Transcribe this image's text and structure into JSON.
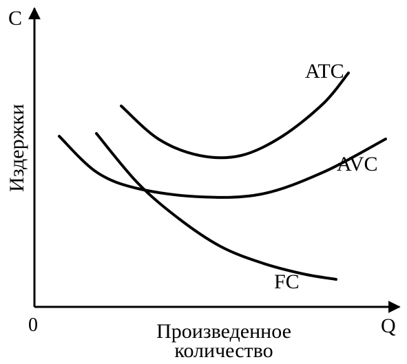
{
  "chart_data": {
    "type": "line",
    "title": "",
    "xlabel": "Произведенное количество",
    "xlabel_lines": [
      "Произведенное",
      "количество"
    ],
    "ylabel": "Издержки",
    "x_axis_letter": "Q",
    "y_axis_letter": "C",
    "origin_label": "0",
    "grid": false,
    "series": [
      {
        "name": "ATC",
        "points": [
          [
            2.1,
            7.3
          ],
          [
            3.0,
            6.1
          ],
          [
            4.0,
            5.5
          ],
          [
            5.0,
            5.5
          ],
          [
            6.0,
            6.2
          ],
          [
            7.0,
            7.4
          ],
          [
            7.6,
            8.5
          ]
        ]
      },
      {
        "name": "AVC",
        "points": [
          [
            0.6,
            6.2
          ],
          [
            1.5,
            4.9
          ],
          [
            2.5,
            4.3
          ],
          [
            4.0,
            4.0
          ],
          [
            5.5,
            4.1
          ],
          [
            7.0,
            4.9
          ],
          [
            8.5,
            6.1
          ]
        ]
      },
      {
        "name": "FC",
        "points": [
          [
            1.5,
            6.3
          ],
          [
            2.5,
            4.5
          ],
          [
            3.5,
            3.2
          ],
          [
            4.5,
            2.2
          ],
          [
            5.5,
            1.6
          ],
          [
            6.5,
            1.2
          ],
          [
            7.3,
            1.0
          ]
        ]
      }
    ]
  }
}
